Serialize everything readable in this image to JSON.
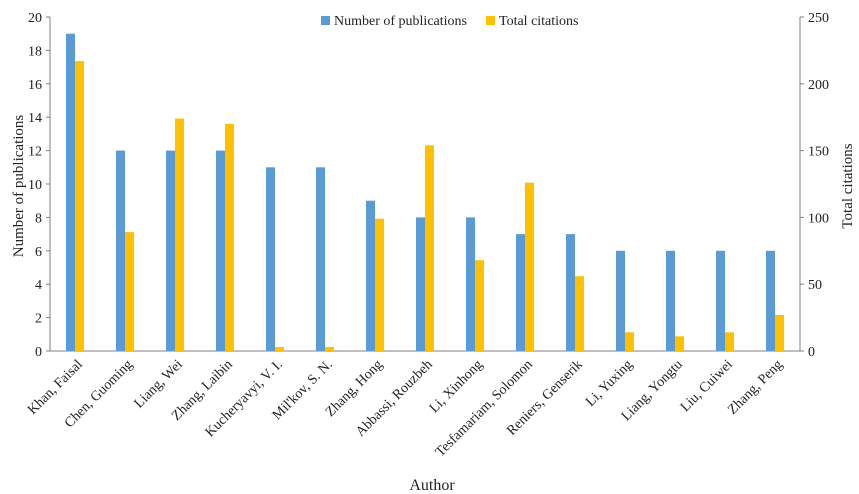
{
  "chart_data": {
    "type": "bar",
    "xlabel": "Author",
    "ylabel": "Number of publications",
    "y2label": "Total citations",
    "ylim": [
      0,
      20
    ],
    "y2lim": [
      0,
      250
    ],
    "yticks": [
      "0",
      "2",
      "4",
      "6",
      "8",
      "10",
      "12",
      "14",
      "16",
      "18",
      "20"
    ],
    "y2ticks": [
      "0",
      "50",
      "100",
      "150",
      "200",
      "250"
    ],
    "grid": false,
    "legend_position": "top-center",
    "categories": [
      "Khan, Faisal",
      "Chen, Guoming",
      "Liang, Wei",
      "Zhang, Laibin",
      "Kucheryavyi, V. I.",
      "Mil'kov, S. N.",
      "Zhang, Hong",
      "Abbassi, Rouzbeh",
      "Li, Xinhong",
      "Tesfamariam, Solomon",
      "Reniers, Genserik",
      "Li, Yuxing",
      "Liang, Yongtu",
      "Liu, Cuiwei",
      "Zhang, Peng"
    ],
    "series": [
      {
        "name": "Number of publications",
        "axis": "left",
        "color": "#5B9BD5",
        "values": [
          19,
          12,
          12,
          12,
          11,
          11,
          9,
          8,
          8,
          7,
          7,
          6,
          6,
          6,
          6
        ]
      },
      {
        "name": "Total citations",
        "axis": "right",
        "color": "#FFC000",
        "values": [
          217,
          89,
          174,
          170,
          3,
          3,
          99,
          154,
          68,
          126,
          56,
          14,
          11,
          14,
          27
        ]
      }
    ]
  }
}
